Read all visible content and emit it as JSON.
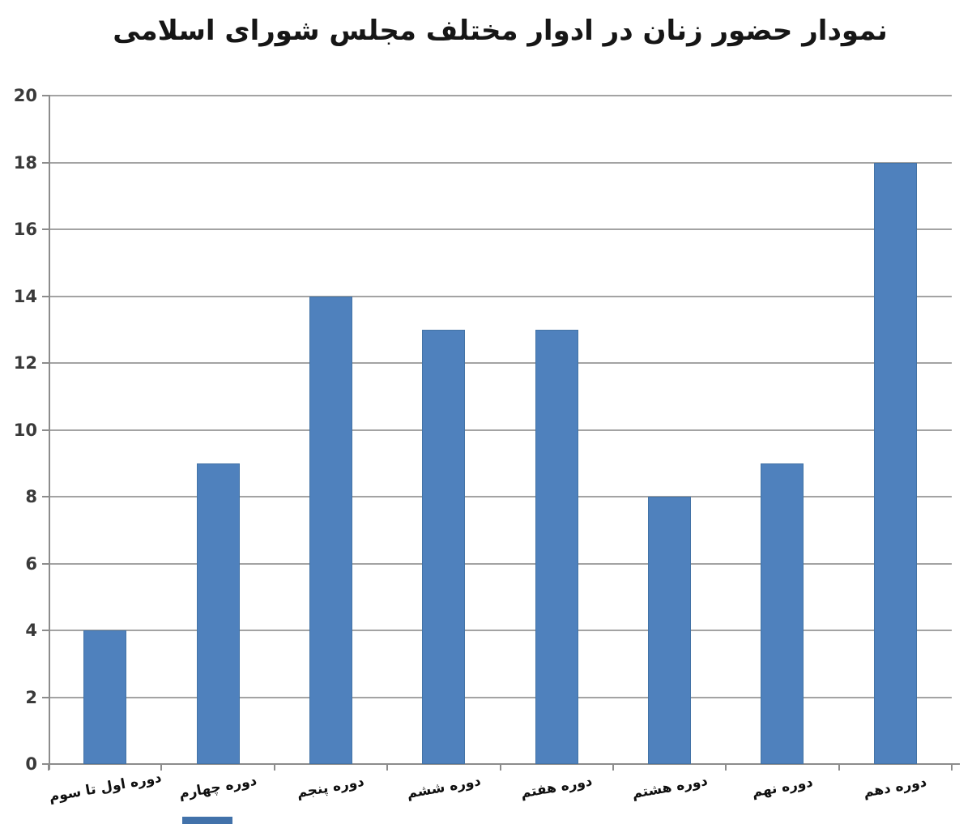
{
  "chart_data": {
    "type": "bar",
    "title": "نمودار حضور زنان در ادوار مختلف مجلس شورای اسلامی",
    "categories": [
      "دوره اول تا سوم",
      "دوره چهارم",
      "دوره پنجم",
      "دوره ششم",
      "دوره هفتم",
      "دوره هشتم",
      "دوره نهم",
      "دوره دهم"
    ],
    "values": [
      4,
      9,
      14,
      13,
      13,
      8,
      9,
      18
    ],
    "xlabel": "",
    "ylabel": "",
    "ylim": [
      0,
      20
    ],
    "ytick_step": 2,
    "ytick_labels": [
      "0",
      "2",
      "4",
      "6",
      "8",
      "10",
      "12",
      "14",
      "16",
      "18",
      "20"
    ],
    "grid": "horizontal",
    "legend": "none"
  },
  "style": {
    "bar_color": "#4f81bd",
    "bar_edge_color": "#4373a6",
    "grid_color": "#a3a3a3",
    "axis_color": "#8c8c8c",
    "title_color": "#161616",
    "ytick_color": "#3a3a3a",
    "xtick_color": "#0f0f0f",
    "background": "#ffffff",
    "bottom_artifact_color": "#4272aa"
  }
}
